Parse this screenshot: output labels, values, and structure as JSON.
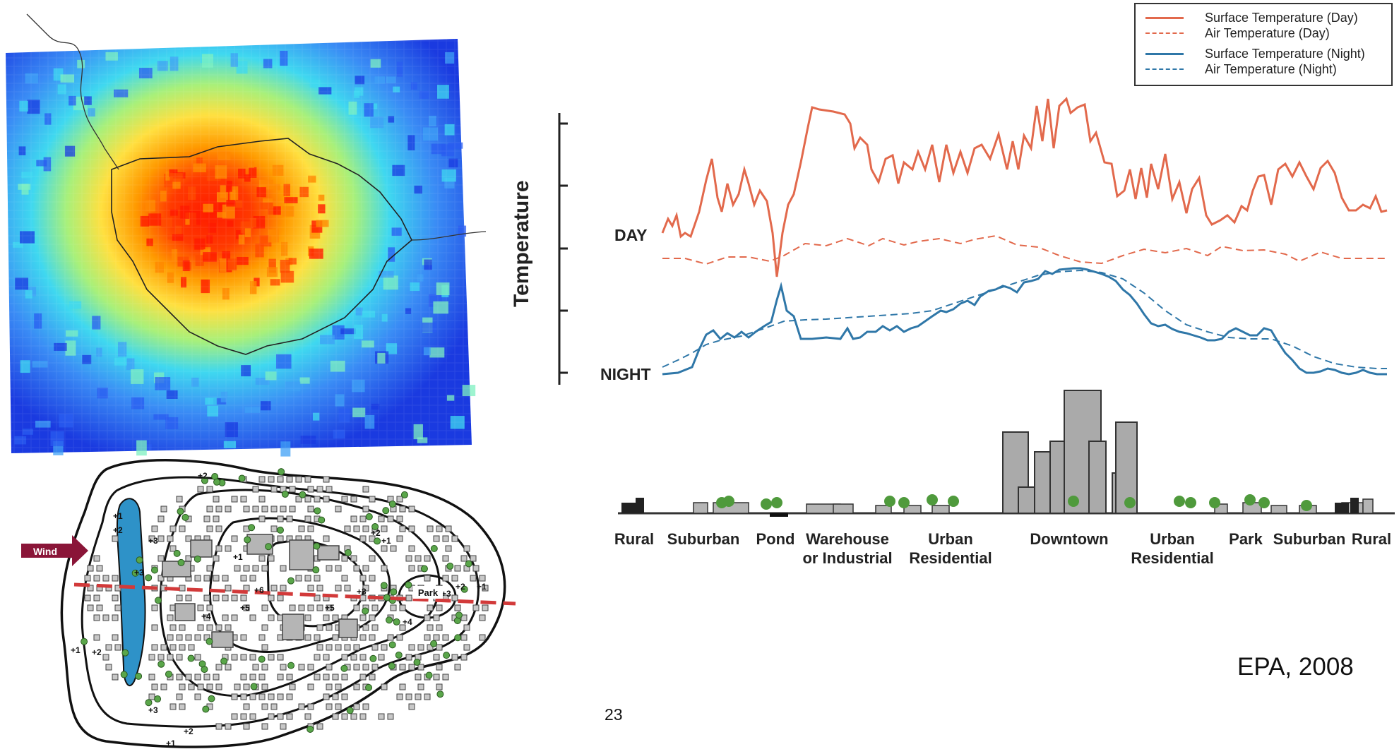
{
  "legend": {
    "items": [
      {
        "label": "Surface Temperature (Day)",
        "color": "#e2694c",
        "style": "solid"
      },
      {
        "label": "Air Temperature  (Day)",
        "color": "#e2694c",
        "style": "dashed"
      },
      {
        "label": "Surface Temperature (Night)",
        "color": "#2f77a8",
        "style": "solid"
      },
      {
        "label": "Air Temperature (Night)",
        "color": "#2f77a8",
        "style": "dashed"
      }
    ]
  },
  "profile": {
    "y_axis_label": "Temperature",
    "day_label": "DAY",
    "night_label": "NIGHT",
    "zones": [
      {
        "label": "Rural"
      },
      {
        "label": "Suburban"
      },
      {
        "label": "Pond"
      },
      {
        "label": "Warehouse\nor Industrial"
      },
      {
        "label": "Urban\nResidential"
      },
      {
        "label": "Downtown"
      },
      {
        "label": "Urban\nResidential"
      },
      {
        "label": "Park"
      },
      {
        "label": "Suburban"
      },
      {
        "label": "Rural"
      }
    ]
  },
  "contour_map": {
    "wind_label": "Wind",
    "park_label": "Park",
    "isotherm_labels": [
      "+1",
      "+2",
      "+3",
      "+4",
      "+5",
      "+6",
      "+5",
      "+4",
      "+3",
      "+2",
      "+1",
      "+3",
      "+2",
      "+1",
      "+2",
      "+1",
      "+3",
      "+2",
      "+1",
      "+2",
      "+1",
      "+3"
    ]
  },
  "citation": "EPA, 2008",
  "page_number": "23"
}
